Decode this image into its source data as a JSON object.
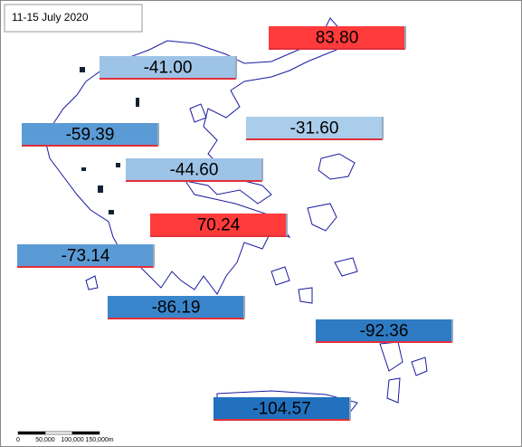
{
  "title": "11-15 July 2020",
  "regions": [
    {
      "label": "83.80",
      "color": "#ff3b3b"
    },
    {
      "label": "-41.00",
      "color": "#9dc3e6"
    },
    {
      "label": "-59.39",
      "color": "#5b9bd5"
    },
    {
      "label": "-31.60",
      "color": "#a9cdea"
    },
    {
      "label": "-44.60",
      "color": "#9dc3e6"
    },
    {
      "label": "70.24",
      "color": "#ff3b3b"
    },
    {
      "label": "-73.14",
      "color": "#5b9bd5"
    },
    {
      "label": "-86.19",
      "color": "#3a86cc"
    },
    {
      "label": "-92.36",
      "color": "#2e7bc4"
    },
    {
      "label": "-104.57",
      "color": "#2171bf"
    }
  ],
  "scale_bar": [
    "0",
    "50,000",
    "100,000",
    "150,000m"
  ]
}
